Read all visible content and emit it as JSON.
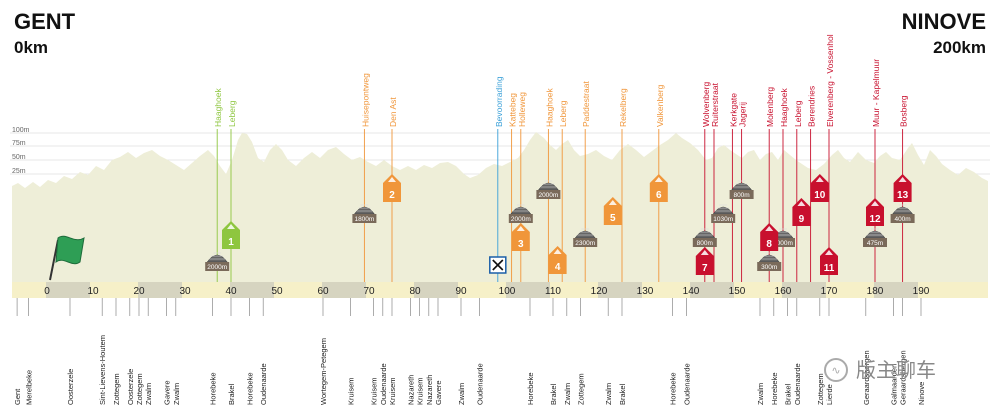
{
  "start": {
    "city": "GENT",
    "km": "0km"
  },
  "finish": {
    "city": "NINOVE",
    "km": "200km"
  },
  "altitude_labels": [
    "100m",
    "75m",
    "50m",
    "25m"
  ],
  "axis_km": [
    "0",
    "10",
    "20",
    "30",
    "40",
    "50",
    "60",
    "70",
    "80",
    "90",
    "100",
    "110",
    "120",
    "130",
    "140",
    "150",
    "160",
    "170",
    "180",
    "190"
  ],
  "climbs": [
    {
      "name": "Haaghoek",
      "km": 37,
      "color": "#8ec63f"
    },
    {
      "name": "Leberg",
      "km": 40,
      "color": "#8ec63f"
    },
    {
      "name": "Huisepontweg",
      "km": 69,
      "color": "#f0963a"
    },
    {
      "name": "Den Ast",
      "km": 75,
      "color": "#f0963a"
    },
    {
      "name": "Bevoorrading",
      "km": 98,
      "color": "#3aa0d8"
    },
    {
      "name": "Kattebeg",
      "km": 101,
      "color": "#f0963a"
    },
    {
      "name": "Holleweg",
      "km": 103,
      "color": "#f0963a"
    },
    {
      "name": "Haaghoek",
      "km": 109,
      "color": "#f0963a"
    },
    {
      "name": "Leberg",
      "km": 112,
      "color": "#f0963a"
    },
    {
      "name": "Paddestraat",
      "km": 117,
      "color": "#f0963a"
    },
    {
      "name": "Rekelberg",
      "km": 125,
      "color": "#f0963a"
    },
    {
      "name": "Valkenberg",
      "km": 133,
      "color": "#f0963a"
    },
    {
      "name": "Wolvenberg",
      "km": 143,
      "color": "#c8102e"
    },
    {
      "name": "Ruiterstraat",
      "km": 145,
      "color": "#c8102e"
    },
    {
      "name": "Kerkgate",
      "km": 149,
      "color": "#c8102e"
    },
    {
      "name": "Jagerij",
      "km": 151,
      "color": "#c8102e"
    },
    {
      "name": "Molenberg",
      "km": 157,
      "color": "#c8102e"
    },
    {
      "name": "Haaghoek",
      "km": 160,
      "color": "#c8102e"
    },
    {
      "name": "Leberg",
      "km": 163,
      "color": "#c8102e"
    },
    {
      "name": "Berendries",
      "km": 166,
      "color": "#c8102e"
    },
    {
      "name": "Elverenberg - Vossenhol",
      "km": 170,
      "color": "#c8102e"
    },
    {
      "name": "Muur - Kapelmuur",
      "km": 180,
      "color": "#c8102e"
    },
    {
      "name": "Bosberg",
      "km": 186,
      "color": "#c8102e"
    }
  ],
  "markers": [
    {
      "num": "1",
      "km": 40,
      "color": "#8ec63f",
      "elev": 240
    },
    {
      "num": "2",
      "km": 75,
      "color": "#f0963a",
      "elev": 193
    },
    {
      "num": "3",
      "km": 103,
      "color": "#f0963a",
      "elev": 242
    },
    {
      "num": "4",
      "km": 111,
      "color": "#f0963a",
      "elev": 265
    },
    {
      "num": "5",
      "km": 123,
      "color": "#f0963a",
      "elev": 216
    },
    {
      "num": "6",
      "km": 133,
      "color": "#f0963a",
      "elev": 193
    },
    {
      "num": "7",
      "km": 143,
      "color": "#c8102e",
      "elev": 266
    },
    {
      "num": "8",
      "km": 157,
      "color": "#c8102e",
      "elev": 242
    },
    {
      "num": "9",
      "km": 164,
      "color": "#c8102e",
      "elev": 217
    },
    {
      "num": "10",
      "km": 168,
      "color": "#c8102e",
      "elev": 193
    },
    {
      "num": "11",
      "km": 170,
      "color": "#c8102e",
      "elev": 266
    },
    {
      "num": "12",
      "km": 180,
      "color": "#c8102e",
      "elev": 217
    },
    {
      "num": "13",
      "km": 186,
      "color": "#c8102e",
      "elev": 193
    }
  ],
  "cobbles": [
    {
      "label": "2000m",
      "km": 37,
      "elev": 262
    },
    {
      "label": "1800m",
      "km": 69,
      "elev": 214
    },
    {
      "label": "2000m",
      "km": 103,
      "elev": 214
    },
    {
      "label": "2000m",
      "km": 109,
      "elev": 190
    },
    {
      "label": "2300m",
      "km": 117,
      "elev": 238
    },
    {
      "label": "800m",
      "km": 143,
      "elev": 238
    },
    {
      "label": "1030m",
      "km": 147,
      "elev": 214
    },
    {
      "label": "800m",
      "km": 151,
      "elev": 190
    },
    {
      "label": "300m",
      "km": 157,
      "elev": 262
    },
    {
      "label": "2000m",
      "km": 160,
      "elev": 238
    },
    {
      "label": "475m",
      "km": 180,
      "elev": 238
    },
    {
      "label": "400m",
      "km": 186,
      "elev": 214
    }
  ],
  "feed_km": 98,
  "places": [
    {
      "name": "Gent",
      "km": -6.5
    },
    {
      "name": "Merelbeke",
      "km": -4
    },
    {
      "name": "Oosterzele",
      "km": 5
    },
    {
      "name": "Sint-Lievens-Houtem",
      "km": 12
    },
    {
      "name": "Zottegem",
      "km": 15
    },
    {
      "name": "Oosterzele",
      "km": 18
    },
    {
      "name": "Zottegem",
      "km": 20
    },
    {
      "name": "Zwalm",
      "km": 22
    },
    {
      "name": "Gavere",
      "km": 26
    },
    {
      "name": "Zwalm",
      "km": 28
    },
    {
      "name": "Horebeke",
      "km": 36
    },
    {
      "name": "Brakel",
      "km": 40
    },
    {
      "name": "Horebeke",
      "km": 44
    },
    {
      "name": "Oudenaarde",
      "km": 47
    },
    {
      "name": "Wortegem-Petegem",
      "km": 60
    },
    {
      "name": "Kruisem",
      "km": 66
    },
    {
      "name": "Kruisem",
      "km": 71
    },
    {
      "name": "Oudenaarde",
      "km": 73
    },
    {
      "name": "Kruisem",
      "km": 75
    },
    {
      "name": "Nazareth",
      "km": 79
    },
    {
      "name": "Kruisem",
      "km": 81
    },
    {
      "name": "Nazareth",
      "km": 83
    },
    {
      "name": "Gavere",
      "km": 85
    },
    {
      "name": "Zwalm",
      "km": 90
    },
    {
      "name": "Oudenaarde",
      "km": 94
    },
    {
      "name": "Horebeke",
      "km": 105
    },
    {
      "name": "Brakel",
      "km": 110
    },
    {
      "name": "Zwalm",
      "km": 113
    },
    {
      "name": "Zottegem",
      "km": 116
    },
    {
      "name": "Zwalm",
      "km": 122
    },
    {
      "name": "Brakel",
      "km": 125
    },
    {
      "name": "Horebeke",
      "km": 136
    },
    {
      "name": "Oudenaarde",
      "km": 139
    },
    {
      "name": "Zwalm",
      "km": 155
    },
    {
      "name": "Horebeke",
      "km": 158
    },
    {
      "name": "Brakel",
      "km": 161
    },
    {
      "name": "Oudenaarde",
      "km": 163
    },
    {
      "name": "Zottegem",
      "km": 168
    },
    {
      "name": "Lierde",
      "km": 170
    },
    {
      "name": "Geraardsbergen",
      "km": 178
    },
    {
      "name": "Galmaarden",
      "km": 184
    },
    {
      "name": "Geraardsbergen",
      "km": 186
    },
    {
      "name": "Ninove",
      "km": 190
    }
  ],
  "watermark": "版主聊车"
}
